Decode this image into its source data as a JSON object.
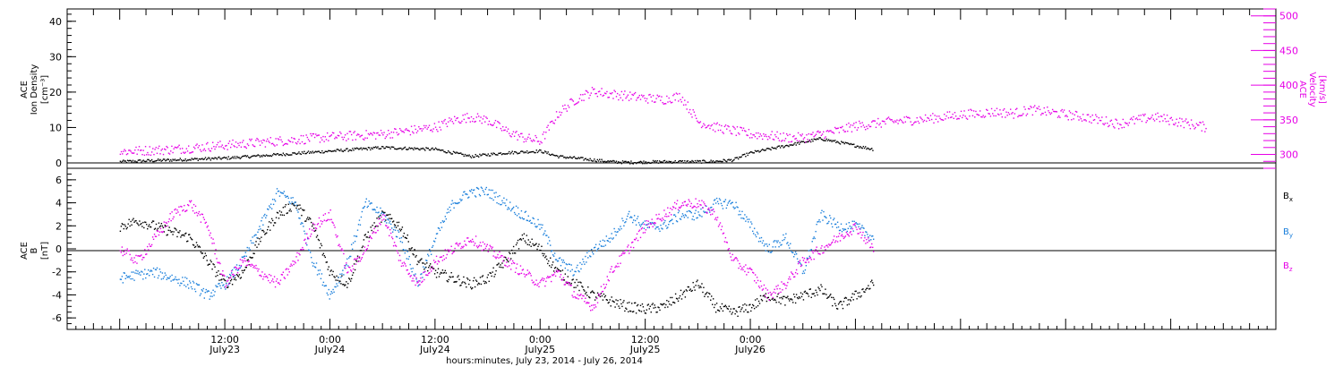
{
  "chart_data": [
    {
      "type": "scatter",
      "panel": "top",
      "ylabel": [
        "ACE",
        "Ion Density",
        "[cm⁻³]"
      ],
      "y2label": [
        "ACE",
        "Velocity",
        "[km/s]"
      ],
      "ylim": [
        0,
        45
      ],
      "y2lim": [
        280,
        510
      ],
      "yticks": [
        0,
        10,
        20,
        30,
        40
      ],
      "y2ticks": [
        300,
        350,
        400,
        450,
        500
      ],
      "colors": {
        "density": "#000000",
        "velocity": "#e600e6"
      },
      "series": [
        {
          "axis": "left",
          "x": [
            0,
            6,
            12,
            18,
            24,
            30,
            36,
            40,
            44,
            48,
            50,
            52,
            54,
            56,
            58,
            60,
            62,
            64,
            66,
            68,
            70,
            72,
            74,
            76,
            78,
            80,
            82,
            84,
            86
          ],
          "values": [
            0.5,
            1,
            1.5,
            2.5,
            3.5,
            4.5,
            4,
            2,
            3,
            3.5,
            2,
            1.5,
            1,
            0.5,
            0.3,
            0.4,
            0.5,
            0.5,
            0.5,
            0.6,
            1,
            3,
            4,
            5,
            6,
            7,
            6,
            5,
            4
          ]
        },
        {
          "axis": "right",
          "x": [
            0,
            6,
            12,
            18,
            24,
            30,
            36,
            38,
            40,
            42,
            44,
            46,
            48,
            50,
            52,
            54,
            56,
            58,
            60,
            62,
            64,
            66,
            68,
            70,
            72,
            74,
            76,
            78,
            80,
            82,
            84,
            86,
            88,
            90,
            92,
            94,
            96,
            98,
            100,
            102,
            104,
            106,
            108,
            110,
            112,
            114,
            116,
            118,
            120,
            122,
            124
          ],
          "values": [
            305,
            308,
            314,
            320,
            326,
            330,
            340,
            350,
            355,
            350,
            335,
            325,
            320,
            360,
            380,
            392,
            388,
            385,
            382,
            380,
            385,
            348,
            340,
            335,
            330,
            328,
            325,
            325,
            330,
            335,
            342,
            345,
            348,
            350,
            352,
            355,
            358,
            360,
            362,
            360,
            365,
            362,
            358,
            355,
            350,
            345,
            350,
            355,
            350,
            345,
            340
          ]
        }
      ]
    },
    {
      "type": "scatter",
      "panel": "bottom",
      "ylabel": [
        "ACE",
        "B",
        "[nT]"
      ],
      "ylim": [
        -7,
        7
      ],
      "yticks": [
        -6,
        -4,
        -2,
        0,
        2,
        4,
        6
      ],
      "xlabel": "hours:minutes, July 23, 2014 - July 26, 2014",
      "xlim": [
        -6,
        132
      ],
      "xticks": [
        {
          "x": 12,
          "time": "12:00",
          "date": "July23"
        },
        {
          "x": 24,
          "time": "0:00",
          "date": "July24"
        },
        {
          "x": 36,
          "time": "12:00",
          "date": "July24"
        },
        {
          "x": 48,
          "time": "0:00",
          "date": "July25"
        },
        {
          "x": 60,
          "time": "12:00",
          "date": "July25"
        },
        {
          "x": 72,
          "time": "0:00",
          "date": "July26"
        }
      ],
      "legend_position": "right",
      "series": [
        {
          "name": "Bx",
          "color": "#000000",
          "x": [
            0,
            2,
            4,
            6,
            8,
            10,
            12,
            14,
            16,
            18,
            20,
            22,
            24,
            26,
            28,
            30,
            32,
            34,
            36,
            38,
            40,
            42,
            44,
            46,
            48,
            50,
            52,
            54,
            56,
            58,
            60,
            62,
            64,
            66,
            68,
            70,
            72,
            74,
            76,
            78,
            80,
            82,
            84,
            86
          ],
          "values": [
            2,
            2.5,
            2,
            1.5,
            1,
            -1,
            -3,
            -2,
            1,
            3,
            4,
            2,
            -2,
            -3,
            1,
            3,
            2,
            -1,
            -2,
            -2.5,
            -3,
            -2.5,
            -1,
            1,
            0,
            -2,
            -3,
            -4,
            -4.5,
            -5,
            -5.2,
            -5,
            -4,
            -3,
            -5,
            -5.5,
            -5,
            -4,
            -4.5,
            -4,
            -3.5,
            -5,
            -4,
            -3
          ]
        },
        {
          "name": "By",
          "color": "#1a7fdb",
          "x": [
            0,
            2,
            4,
            6,
            8,
            10,
            12,
            14,
            16,
            18,
            20,
            22,
            24,
            26,
            28,
            30,
            32,
            34,
            36,
            38,
            40,
            42,
            44,
            46,
            48,
            50,
            52,
            54,
            56,
            58,
            60,
            62,
            64,
            66,
            68,
            70,
            72,
            74,
            76,
            78,
            80,
            82,
            84,
            86
          ],
          "values": [
            -2.5,
            -2.2,
            -2,
            -2.5,
            -3,
            -4,
            -3,
            -1,
            2,
            5,
            4,
            -1,
            -4,
            -1,
            4,
            3,
            1,
            -3,
            1,
            4,
            5,
            5,
            4,
            3,
            2,
            -1,
            -2,
            0,
            1,
            3,
            2,
            2,
            3,
            3,
            4,
            4,
            2,
            0,
            1,
            -2,
            3,
            2,
            2,
            1
          ]
        },
        {
          "name": "Bz",
          "color": "#e600e6",
          "x": [
            0,
            2,
            4,
            6,
            8,
            10,
            12,
            14,
            16,
            18,
            20,
            22,
            24,
            26,
            28,
            30,
            32,
            34,
            36,
            38,
            40,
            42,
            44,
            46,
            48,
            50,
            52,
            54,
            56,
            58,
            60,
            62,
            64,
            66,
            68,
            70,
            72,
            74,
            76,
            78,
            80,
            82,
            84,
            86
          ],
          "values": [
            0,
            -1,
            1,
            3,
            4,
            2,
            -3,
            -1,
            -2,
            -3,
            -1,
            2,
            3,
            -2,
            0,
            3,
            -1,
            -3,
            -1,
            0,
            1,
            0,
            -1,
            -2,
            -3,
            -2,
            -4,
            -5,
            -2,
            0,
            2,
            3,
            4,
            4,
            3,
            -1,
            -2,
            -4,
            -3,
            -1,
            0,
            1,
            2,
            0
          ]
        }
      ]
    }
  ]
}
